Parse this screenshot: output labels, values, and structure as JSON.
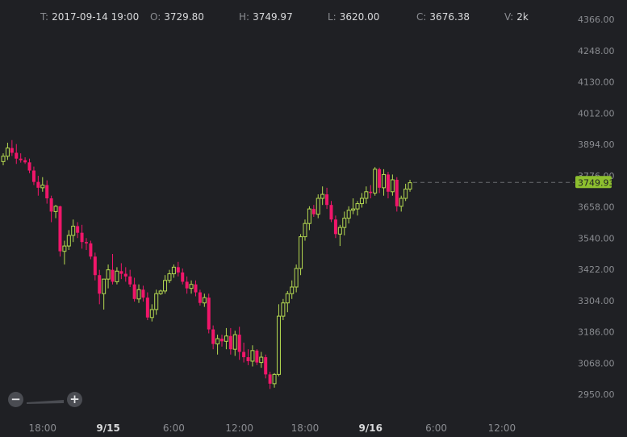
{
  "ohlc_bar": {
    "t_label": "T:",
    "t_value": "2017-09-14 19:00",
    "o_label": "O:",
    "o_value": "3729.80",
    "h_label": "H:",
    "h_value": "3749.97",
    "l_label": "L:",
    "l_value": "3620.00",
    "c_label": "C:",
    "c_value": "3676.38",
    "v_label": "V:",
    "v_value": "2k"
  },
  "zoom": {
    "minus_label": "−",
    "plus_label": "+"
  },
  "colors": {
    "background": "#1f2024",
    "up": "#b5d951",
    "down": "#f0166a",
    "axis_text": "#8a8c91",
    "price_badge": "#8dbf2f"
  },
  "chart_data": {
    "type": "candlestick",
    "ylim": [
      2890,
      4400
    ],
    "y_ticks": [
      "4366.00",
      "4248.00",
      "4130.00",
      "4012.00",
      "3894.00",
      "3776.00",
      "3658.00",
      "3540.00",
      "3422.00",
      "3304.00",
      "3186.00",
      "3068.00",
      "2950.00"
    ],
    "x_ticks": [
      {
        "label": "18:00",
        "pos": 9,
        "bold": false
      },
      {
        "label": "9/15",
        "pos": 24,
        "bold": true
      },
      {
        "label": "6:00",
        "pos": 39,
        "bold": false
      },
      {
        "label": "12:00",
        "pos": 54,
        "bold": false
      },
      {
        "label": "18:00",
        "pos": 69,
        "bold": false
      },
      {
        "label": "9/16",
        "pos": 84,
        "bold": true
      },
      {
        "label": "6:00",
        "pos": 99,
        "bold": false
      },
      {
        "label": "12:00",
        "pos": 114,
        "bold": false
      }
    ],
    "last_price": "3749.93",
    "last_value": 3749.93,
    "candles": [
      [
        3829,
        3860,
        3815,
        3849
      ],
      [
        3849,
        3900,
        3835,
        3880
      ],
      [
        3880,
        3910,
        3850,
        3862
      ],
      [
        3862,
        3895,
        3820,
        3840
      ],
      [
        3840,
        3860,
        3825,
        3834
      ],
      [
        3834,
        3845,
        3820,
        3826
      ],
      [
        3826,
        3840,
        3785,
        3795
      ],
      [
        3795,
        3810,
        3740,
        3752
      ],
      [
        3752,
        3775,
        3700,
        3730
      ],
      [
        3730,
        3770,
        3715,
        3740
      ],
      [
        3740,
        3758,
        3670,
        3690
      ],
      [
        3690,
        3700,
        3600,
        3640
      ],
      [
        3640,
        3665,
        3615,
        3660
      ],
      [
        3660,
        3662,
        3470,
        3490
      ],
      [
        3490,
        3530,
        3440,
        3510
      ],
      [
        3510,
        3570,
        3495,
        3550
      ],
      [
        3550,
        3610,
        3525,
        3585
      ],
      [
        3585,
        3600,
        3540,
        3560
      ],
      [
        3560,
        3590,
        3500,
        3525
      ],
      [
        3525,
        3540,
        3495,
        3520
      ],
      [
        3520,
        3530,
        3460,
        3470
      ],
      [
        3470,
        3485,
        3380,
        3400
      ],
      [
        3400,
        3420,
        3290,
        3330
      ],
      [
        3330,
        3370,
        3270,
        3385
      ],
      [
        3385,
        3440,
        3350,
        3420
      ],
      [
        3420,
        3480,
        3365,
        3375
      ],
      [
        3375,
        3430,
        3365,
        3415
      ],
      [
        3415,
        3445,
        3385,
        3405
      ],
      [
        3405,
        3430,
        3375,
        3395
      ],
      [
        3395,
        3420,
        3355,
        3365
      ],
      [
        3365,
        3390,
        3300,
        3310
      ],
      [
        3310,
        3365,
        3295,
        3345
      ],
      [
        3345,
        3360,
        3300,
        3315
      ],
      [
        3315,
        3335,
        3230,
        3240
      ],
      [
        3240,
        3290,
        3225,
        3270
      ],
      [
        3270,
        3345,
        3250,
        3330
      ],
      [
        3330,
        3345,
        3325,
        3340
      ],
      [
        3340,
        3400,
        3330,
        3380
      ],
      [
        3380,
        3420,
        3370,
        3405
      ],
      [
        3405,
        3440,
        3390,
        3430
      ],
      [
        3430,
        3450,
        3395,
        3410
      ],
      [
        3410,
        3425,
        3365,
        3375
      ],
      [
        3375,
        3395,
        3330,
        3350
      ],
      [
        3350,
        3380,
        3330,
        3365
      ],
      [
        3365,
        3380,
        3320,
        3335
      ],
      [
        3335,
        3345,
        3285,
        3295
      ],
      [
        3295,
        3330,
        3280,
        3315
      ],
      [
        3315,
        3330,
        3180,
        3195
      ],
      [
        3195,
        3210,
        3120,
        3140
      ],
      [
        3140,
        3175,
        3100,
        3160
      ],
      [
        3160,
        3175,
        3130,
        3150
      ],
      [
        3150,
        3200,
        3120,
        3170
      ],
      [
        3170,
        3200,
        3100,
        3120
      ],
      [
        3120,
        3190,
        3095,
        3175
      ],
      [
        3175,
        3205,
        3080,
        3110
      ],
      [
        3110,
        3145,
        3070,
        3090
      ],
      [
        3090,
        3120,
        3060,
        3075
      ],
      [
        3075,
        3135,
        3055,
        3115
      ],
      [
        3115,
        3120,
        3060,
        3070
      ],
      [
        3070,
        3110,
        3050,
        3090
      ],
      [
        3090,
        3100,
        3010,
        3025
      ],
      [
        3025,
        3035,
        2970,
        2990
      ],
      [
        2990,
        3030,
        2975,
        3025
      ],
      [
        3025,
        3290,
        3018,
        3245
      ],
      [
        3245,
        3310,
        3230,
        3295
      ],
      [
        3295,
        3340,
        3260,
        3330
      ],
      [
        3330,
        3380,
        3310,
        3355
      ],
      [
        3355,
        3440,
        3335,
        3425
      ],
      [
        3425,
        3555,
        3400,
        3545
      ],
      [
        3545,
        3610,
        3530,
        3595
      ],
      [
        3595,
        3660,
        3570,
        3650
      ],
      [
        3650,
        3665,
        3620,
        3630
      ],
      [
        3630,
        3705,
        3615,
        3690
      ],
      [
        3690,
        3735,
        3665,
        3705
      ],
      [
        3705,
        3730,
        3650,
        3665
      ],
      [
        3665,
        3680,
        3600,
        3610
      ],
      [
        3610,
        3625,
        3540,
        3555
      ],
      [
        3555,
        3590,
        3510,
        3580
      ],
      [
        3580,
        3640,
        3550,
        3615
      ],
      [
        3615,
        3660,
        3595,
        3645
      ],
      [
        3645,
        3690,
        3630,
        3650
      ],
      [
        3650,
        3680,
        3625,
        3670
      ],
      [
        3670,
        3710,
        3655,
        3690
      ],
      [
        3690,
        3735,
        3670,
        3715
      ],
      [
        3715,
        3740,
        3690,
        3710
      ],
      [
        3710,
        3808,
        3700,
        3800
      ],
      [
        3800,
        3806,
        3710,
        3730
      ],
      [
        3730,
        3800,
        3700,
        3780
      ],
      [
        3780,
        3790,
        3690,
        3715
      ],
      [
        3715,
        3780,
        3700,
        3760
      ],
      [
        3760,
        3770,
        3640,
        3660
      ],
      [
        3660,
        3700,
        3640,
        3690
      ],
      [
        3690,
        3745,
        3680,
        3725
      ],
      [
        3725,
        3760,
        3715,
        3749
      ]
    ]
  }
}
